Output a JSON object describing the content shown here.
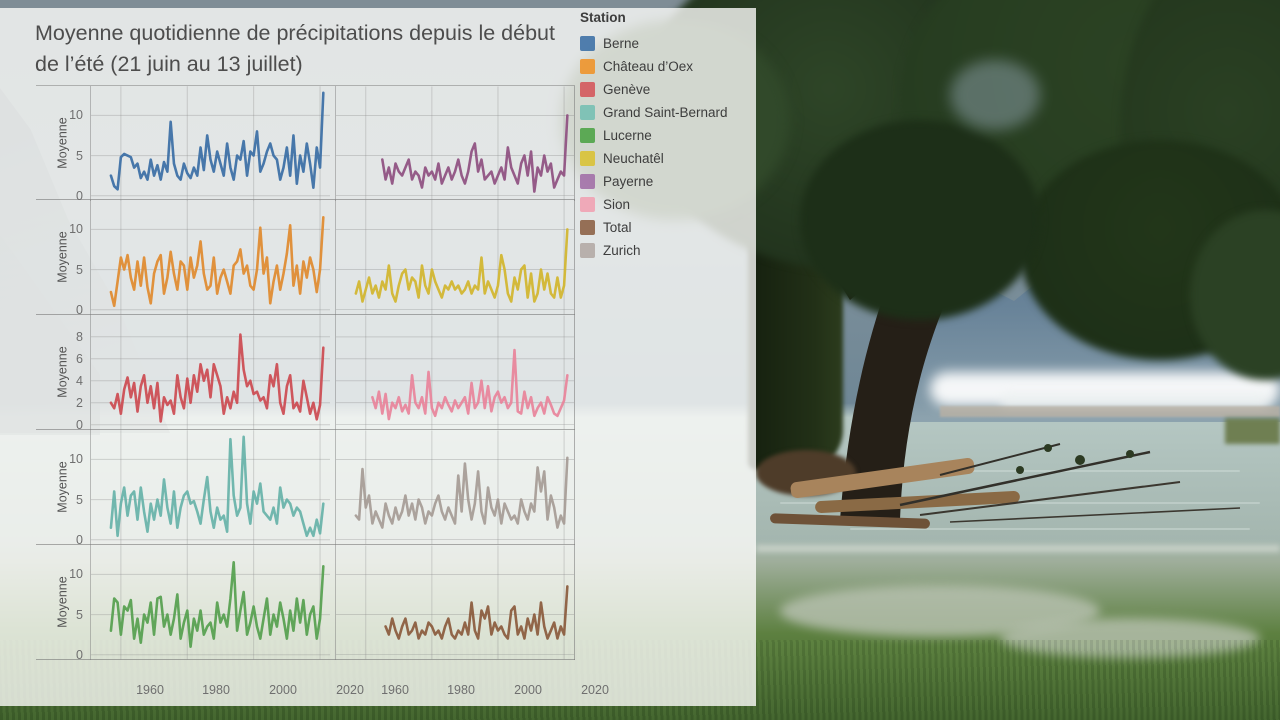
{
  "overlay": {
    "title": "Moyenne quotidienne de précipitations depuis le début de l’été (21 juin au 13 juillet)",
    "legend": {
      "title": "Station",
      "items": [
        {
          "label": "Berne",
          "color": "#3a6ea5"
        },
        {
          "label": "Château d’Oex",
          "color": "#ef9227"
        },
        {
          "label": "Genève",
          "color": "#d4555a"
        },
        {
          "label": "Grand Saint-Bernard",
          "color": "#74bfb3"
        },
        {
          "label": "Lucerne",
          "color": "#4ba344"
        },
        {
          "label": "Neuchatêl",
          "color": "#d9c232"
        },
        {
          "label": "Payerne",
          "color": "#a06da6"
        },
        {
          "label": "Sion",
          "color": "#f0a0b2"
        },
        {
          "label": "Total",
          "color": "#8a5f42"
        },
        {
          "label": "Zurich",
          "color": "#b2a9a4"
        }
      ]
    },
    "x_ticks": [
      "1960",
      "1980",
      "2000",
      "2020"
    ]
  },
  "chart_data": {
    "type": "line",
    "title": "Moyenne quotidienne de précipitations depuis le début de l’été (21 juin au 13 juillet)",
    "ylabel": "Moyenne",
    "xlabel": "",
    "grid": true,
    "legend_position": "right",
    "x_domain": [
      1951,
      2023
    ],
    "x_ticks": [
      1960,
      1980,
      2000,
      2020
    ],
    "layout": "5 rows x 2 cols small multiples, panels listed row-major",
    "panels": [
      {
        "station": "Berne",
        "color": "#3a6ea5",
        "ylim": [
          0,
          13
        ],
        "yticks": [
          0,
          5,
          10
        ],
        "start_year": 1957,
        "values": [
          2.5,
          1.2,
          0.8,
          4.8,
          5.2,
          5.0,
          4.8,
          3.5,
          4.0,
          2.2,
          3.0,
          2.0,
          4.5,
          2.5,
          3.8,
          2.0,
          4.2,
          3.0,
          9.2,
          4.0,
          2.5,
          2.0,
          4.0,
          2.8,
          2.2,
          3.5,
          2.5,
          6.0,
          3.2,
          7.5,
          4.5,
          3.0,
          5.5,
          4.0,
          2.5,
          6.5,
          3.5,
          2.0,
          5.0,
          4.5,
          6.8,
          2.5,
          5.5,
          5.0,
          8.0,
          3.0,
          4.0,
          5.5,
          6.5,
          5.0,
          4.5,
          2.0,
          3.5,
          6.0,
          2.5,
          7.5,
          1.5,
          5.0,
          3.0,
          6.5,
          4.0,
          1.0,
          6.0,
          3.5,
          12.8
        ]
      },
      {
        "station": "Payerne",
        "color": "#8e4f80",
        "ylim": [
          0,
          13
        ],
        "yticks": [
          0,
          5,
          10
        ],
        "start_year": 1965,
        "values": [
          4.5,
          2.0,
          3.5,
          1.5,
          4.0,
          3.0,
          2.5,
          3.5,
          4.5,
          2.0,
          3.0,
          2.5,
          1.0,
          3.5,
          2.5,
          3.0,
          2.0,
          4.0,
          1.5,
          2.5,
          3.5,
          2.0,
          3.0,
          4.5,
          2.5,
          1.5,
          3.0,
          5.5,
          6.5,
          3.0,
          4.5,
          2.0,
          2.5,
          3.0,
          1.5,
          2.5,
          3.5,
          2.0,
          6.0,
          3.5,
          2.5,
          1.5,
          4.0,
          5.0,
          2.5,
          5.5,
          0.5,
          3.5,
          2.5,
          5.0,
          3.0,
          4.0,
          1.0,
          2.0,
          3.0,
          2.5,
          10.0
        ]
      },
      {
        "station": "Château d'Oex",
        "color": "#e08a2e",
        "ylim": [
          0,
          13
        ],
        "yticks": [
          0,
          5,
          10
        ],
        "start_year": 1957,
        "values": [
          2.2,
          0.5,
          3.5,
          6.5,
          5.0,
          6.8,
          4.0,
          2.5,
          6.0,
          3.0,
          6.5,
          2.8,
          0.8,
          4.5,
          6.0,
          6.8,
          2.0,
          4.0,
          7.2,
          4.5,
          2.5,
          6.0,
          5.5,
          2.5,
          6.5,
          4.0,
          5.5,
          8.5,
          4.5,
          2.5,
          3.0,
          6.5,
          2.0,
          4.0,
          5.0,
          3.5,
          2.0,
          5.5,
          6.0,
          7.5,
          4.5,
          5.5,
          3.0,
          2.5,
          5.0,
          10.2,
          4.5,
          6.5,
          0.8,
          3.5,
          5.5,
          2.5,
          4.5,
          7.0,
          10.5,
          3.0,
          5.5,
          2.0,
          6.0,
          4.0,
          6.5,
          5.0,
          2.2,
          5.0,
          11.5
        ]
      },
      {
        "station": "Neuchatêl",
        "color": "#d1b52c",
        "ylim": [
          0,
          13
        ],
        "yticks": [
          0,
          5,
          10
        ],
        "start_year": 1957,
        "values": [
          2.0,
          3.5,
          1.0,
          2.5,
          4.0,
          2.0,
          3.0,
          1.5,
          3.5,
          2.5,
          5.5,
          2.0,
          1.0,
          3.0,
          4.5,
          5.0,
          2.5,
          4.0,
          3.5,
          1.5,
          5.5,
          3.0,
          2.0,
          5.0,
          3.5,
          2.5,
          1.5,
          3.0,
          2.5,
          3.5,
          2.5,
          3.0,
          2.0,
          2.5,
          3.5,
          2.0,
          3.0,
          2.5,
          6.5,
          2.0,
          3.5,
          2.5,
          1.5,
          3.0,
          6.8,
          5.0,
          2.0,
          1.0,
          4.0,
          2.5,
          5.0,
          5.5,
          1.5,
          4.5,
          1.0,
          2.0,
          5.0,
          2.5,
          4.5,
          2.0,
          1.5,
          4.0,
          1.5,
          3.0,
          10.0
        ]
      },
      {
        "station": "Genève",
        "color": "#cc4a50",
        "ylim": [
          0,
          9.5
        ],
        "yticks": [
          0,
          2,
          4,
          6,
          8
        ],
        "start_year": 1957,
        "values": [
          2.0,
          1.5,
          2.8,
          1.0,
          3.2,
          4.3,
          2.5,
          3.8,
          1.2,
          3.5,
          4.5,
          2.0,
          3.5,
          1.5,
          3.8,
          0.3,
          2.5,
          1.8,
          2.2,
          1.0,
          4.5,
          2.5,
          1.5,
          4.2,
          2.0,
          4.5,
          3.0,
          5.5,
          4.0,
          5.0,
          2.5,
          5.5,
          4.5,
          3.5,
          1.0,
          2.5,
          1.5,
          3.0,
          2.0,
          8.2,
          5.0,
          3.5,
          4.0,
          2.8,
          3.0,
          2.2,
          2.5,
          1.5,
          4.5,
          3.5,
          5.5,
          2.0,
          1.0,
          3.5,
          4.5,
          1.5,
          2.0,
          1.2,
          4.0,
          2.5,
          1.0,
          2.0,
          0.5,
          1.8,
          7.0
        ]
      },
      {
        "station": "Sion",
        "color": "#e8839a",
        "ylim": [
          0,
          9.5
        ],
        "yticks": [
          0,
          2,
          4,
          6,
          8
        ],
        "start_year": 1962,
        "values": [
          2.5,
          1.5,
          3.0,
          1.0,
          2.8,
          0.5,
          2.0,
          1.5,
          2.5,
          1.2,
          1.8,
          1.0,
          4.5,
          2.0,
          1.5,
          2.5,
          1.0,
          4.8,
          1.5,
          0.8,
          2.0,
          1.5,
          2.5,
          1.8,
          1.2,
          2.2,
          1.5,
          2.0,
          2.5,
          1.0,
          3.8,
          1.5,
          2.0,
          4.0,
          1.5,
          3.5,
          1.2,
          2.5,
          3.0,
          2.0,
          2.5,
          1.5,
          2.0,
          6.8,
          1.2,
          1.0,
          3.0,
          1.5,
          2.5,
          0.8,
          1.5,
          2.0,
          1.0,
          2.5,
          1.8,
          1.0,
          0.8,
          1.5,
          2.2,
          4.5
        ]
      },
      {
        "station": "Grand Saint-Bernard",
        "color": "#66b2a8",
        "ylim": [
          0,
          13
        ],
        "yticks": [
          0,
          5,
          10
        ],
        "start_year": 1957,
        "values": [
          1.5,
          6.0,
          0.5,
          4.5,
          6.5,
          3.0,
          5.5,
          6.0,
          2.5,
          6.5,
          3.5,
          1.0,
          4.5,
          2.5,
          5.0,
          3.0,
          7.5,
          4.0,
          2.0,
          6.0,
          1.5,
          4.0,
          5.5,
          6.0,
          4.5,
          4.8,
          3.5,
          2.0,
          5.0,
          7.8,
          3.5,
          1.5,
          4.0,
          2.5,
          3.0,
          1.0,
          12.5,
          5.5,
          3.0,
          4.0,
          12.8,
          4.5,
          2.0,
          6.0,
          4.5,
          7.0,
          3.5,
          3.0,
          2.5,
          4.0,
          2.0,
          6.5,
          4.0,
          5.0,
          4.5,
          3.0,
          4.0,
          3.5,
          2.0,
          0.5,
          1.5,
          0.5,
          2.5,
          0.8,
          4.5
        ]
      },
      {
        "station": "Zurich",
        "color": "#a59b95",
        "ylim": [
          0,
          13
        ],
        "yticks": [
          0,
          5,
          10
        ],
        "start_year": 1957,
        "values": [
          3.0,
          2.5,
          8.8,
          4.0,
          5.5,
          2.0,
          3.5,
          2.5,
          1.5,
          4.5,
          3.0,
          2.0,
          4.0,
          2.5,
          3.5,
          5.5,
          3.0,
          4.5,
          2.5,
          5.0,
          4.0,
          2.0,
          3.5,
          3.0,
          4.5,
          5.5,
          3.5,
          2.5,
          4.0,
          3.0,
          2.0,
          8.0,
          3.5,
          9.5,
          5.0,
          2.5,
          4.5,
          8.5,
          3.5,
          2.0,
          6.5,
          4.0,
          3.0,
          5.0,
          2.0,
          4.5,
          3.5,
          2.5,
          3.0,
          2.0,
          5.0,
          3.5,
          2.5,
          4.5,
          3.5,
          9.0,
          6.0,
          8.5,
          2.5,
          5.5,
          4.0,
          1.5,
          3.0,
          2.0,
          10.2
        ]
      },
      {
        "station": "Lucerne",
        "color": "#55a04e",
        "ylim": [
          0,
          13
        ],
        "yticks": [
          0,
          5,
          10
        ],
        "start_year": 1957,
        "values": [
          3.0,
          7.0,
          6.5,
          2.5,
          6.0,
          5.5,
          6.8,
          2.0,
          4.5,
          1.5,
          5.0,
          4.0,
          6.5,
          2.5,
          7.0,
          7.2,
          3.5,
          5.0,
          2.5,
          4.5,
          7.5,
          2.0,
          4.0,
          5.5,
          1.0,
          4.5,
          3.0,
          5.5,
          2.5,
          3.5,
          4.0,
          2.0,
          6.5,
          4.0,
          5.0,
          3.5,
          7.0,
          11.5,
          3.0,
          5.5,
          7.8,
          2.5,
          4.0,
          6.0,
          3.5,
          2.0,
          4.5,
          7.0,
          2.5,
          5.0,
          3.5,
          6.5,
          4.5,
          2.0,
          5.5,
          3.0,
          7.0,
          4.0,
          6.8,
          2.5,
          5.0,
          6.0,
          2.0,
          4.5,
          11.0
        ]
      },
      {
        "station": "Total",
        "color": "#8a5a3c",
        "ylim": [
          0,
          13
        ],
        "yticks": [
          0,
          5,
          10
        ],
        "start_year": 1966,
        "values": [
          3.5,
          2.5,
          4.5,
          3.0,
          2.0,
          3.5,
          4.5,
          2.5,
          3.0,
          4.0,
          2.0,
          3.0,
          2.5,
          4.0,
          3.5,
          2.5,
          3.0,
          2.0,
          3.5,
          4.5,
          2.5,
          2.0,
          3.0,
          2.5,
          4.0,
          2.5,
          6.5,
          3.0,
          2.0,
          5.5,
          4.5,
          6.0,
          2.5,
          4.0,
          3.0,
          3.5,
          2.5,
          2.0,
          5.5,
          6.0,
          2.5,
          3.5,
          2.0,
          4.5,
          3.0,
          5.0,
          2.5,
          6.5,
          3.5,
          2.0,
          3.0,
          4.0,
          2.0,
          3.5,
          2.5,
          8.5
        ]
      }
    ]
  }
}
